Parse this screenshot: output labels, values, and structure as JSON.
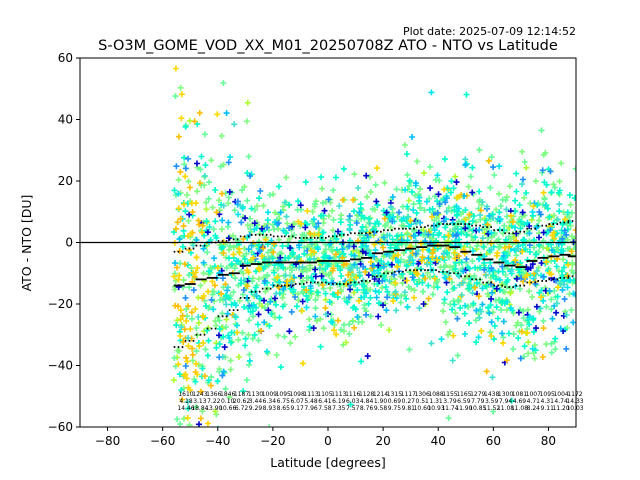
{
  "chart_data": {
    "type": "scatter",
    "plot_date": "Plot date: 2025-07-09 12:14:52",
    "title": "S-O3M_GOME_VOD_XX_M01_20250708Z ATO - NTO vs Latitude",
    "xlabel": "Latitude [degrees]",
    "ylabel": "ATO - NTO [DU]",
    "xlim": [
      -90,
      90
    ],
    "ylim": [
      -60,
      60
    ],
    "xticks": [
      -80,
      -60,
      -40,
      -20,
      0,
      20,
      40,
      60,
      80
    ],
    "yticks": [
      -60,
      -40,
      -20,
      0,
      20,
      40,
      60
    ],
    "xtick_labels": [
      "−80",
      "−60",
      "−40",
      "−20",
      "0",
      "20",
      "40",
      "60",
      "80"
    ],
    "ytick_labels": [
      "−60",
      "−40",
      "−20",
      "0",
      "20",
      "40",
      "60"
    ],
    "zero_line": 0,
    "cloud_lat_range": [
      -56,
      90
    ],
    "colors": {
      "palette": [
        "#0000cd",
        "#1e90ff",
        "#00bfff",
        "#00e5ee",
        "#40e0d0",
        "#00ffcc",
        "#66ff99",
        "#7fff7f",
        "#adff2f",
        "#ffd700",
        "#ffbf00"
      ],
      "mean_marker": "#000000",
      "zero_line": "#000000"
    },
    "bins": {
      "lat": [
        -54,
        -50,
        -46,
        -42,
        -38,
        -34,
        -30,
        -26,
        -22,
        -18,
        -14,
        -10,
        -6,
        -2,
        2,
        6,
        10,
        14,
        18,
        22,
        26,
        30,
        34,
        38,
        42,
        46,
        50,
        54,
        58,
        62,
        66,
        70,
        74,
        78,
        82,
        86,
        89
      ],
      "mean": [
        -14,
        -13.5,
        -12,
        -11.5,
        -10.5,
        -10,
        -7.5,
        -7,
        -6.5,
        -6.5,
        -6.5,
        -6.5,
        -6.5,
        -6,
        -6,
        -6,
        -5.5,
        -5,
        -3.5,
        -3,
        -2.5,
        -2,
        -1.5,
        -1,
        -1,
        -1.5,
        -3,
        -4,
        -5.5,
        -6.5,
        -7.5,
        -8,
        -6,
        -5,
        -4.5,
        -4,
        -4.5
      ],
      "upper": [
        -3,
        -2,
        -1,
        0,
        0.5,
        1,
        2,
        2.5,
        2.5,
        2,
        2,
        1.5,
        1.5,
        1.5,
        2,
        2.5,
        3,
        3,
        3.5,
        4,
        4.5,
        4.5,
        5,
        5.5,
        6,
        6,
        6,
        5.5,
        5,
        4,
        3,
        3.5,
        4.5,
        5.5,
        6,
        6.5,
        7
      ],
      "lower": [
        -34,
        -32,
        -30,
        -28,
        -24,
        -22,
        -18,
        -16,
        -15,
        -14,
        -14,
        -13.5,
        -13,
        -13,
        -13.5,
        -13.5,
        -13,
        -12.5,
        -11,
        -10,
        -9.5,
        -9,
        -9,
        -9,
        -9.5,
        -10,
        -11,
        -12,
        -13,
        -14,
        -14.5,
        -14,
        -13,
        -12.5,
        -12,
        -11.5,
        -11
      ],
      "ann_row1": [
        "1610",
        "1243",
        "1366",
        "1846",
        "1187",
        "1130",
        "1009",
        "1095",
        "1098",
        "1113",
        "1105",
        "1113",
        "1116",
        "1128",
        "1214",
        "1315",
        "1117",
        "1306",
        "1088",
        "1155",
        "1165",
        "1279",
        "1438",
        "1300",
        "1081",
        "1007",
        "1095",
        "1004",
        "1172"
      ],
      "ann_row2": [
        "4.18",
        "3.13",
        "7.22",
        "0.10",
        "20.62",
        "3.44",
        "6.34",
        "6.75",
        "6.07",
        "5.48",
        "6.41",
        "6.19",
        "6.03",
        "4.84",
        "1.90",
        "0.69",
        "0.27",
        "0.51",
        "1.31",
        "3.79",
        "6.59",
        "7.79",
        "3.59",
        "7.94",
        "4.69",
        "4.71",
        "4.31",
        "4.74",
        "14.33"
      ],
      "ann_row3": [
        "14.46",
        "18.84",
        "13.90",
        "10.66",
        "6.72",
        "9.29",
        "8.93",
        "8.65",
        "9.17",
        "7.96",
        "7.58",
        "7.35",
        "7.57",
        "8.76",
        "9.58",
        "9.75",
        "9.81",
        "10.60",
        "10.93",
        "11.74",
        "11.90",
        "10.85",
        "11.52",
        "11.08",
        "11.08",
        "8.24",
        "9.11",
        "11.20",
        "10.03"
      ]
    }
  }
}
